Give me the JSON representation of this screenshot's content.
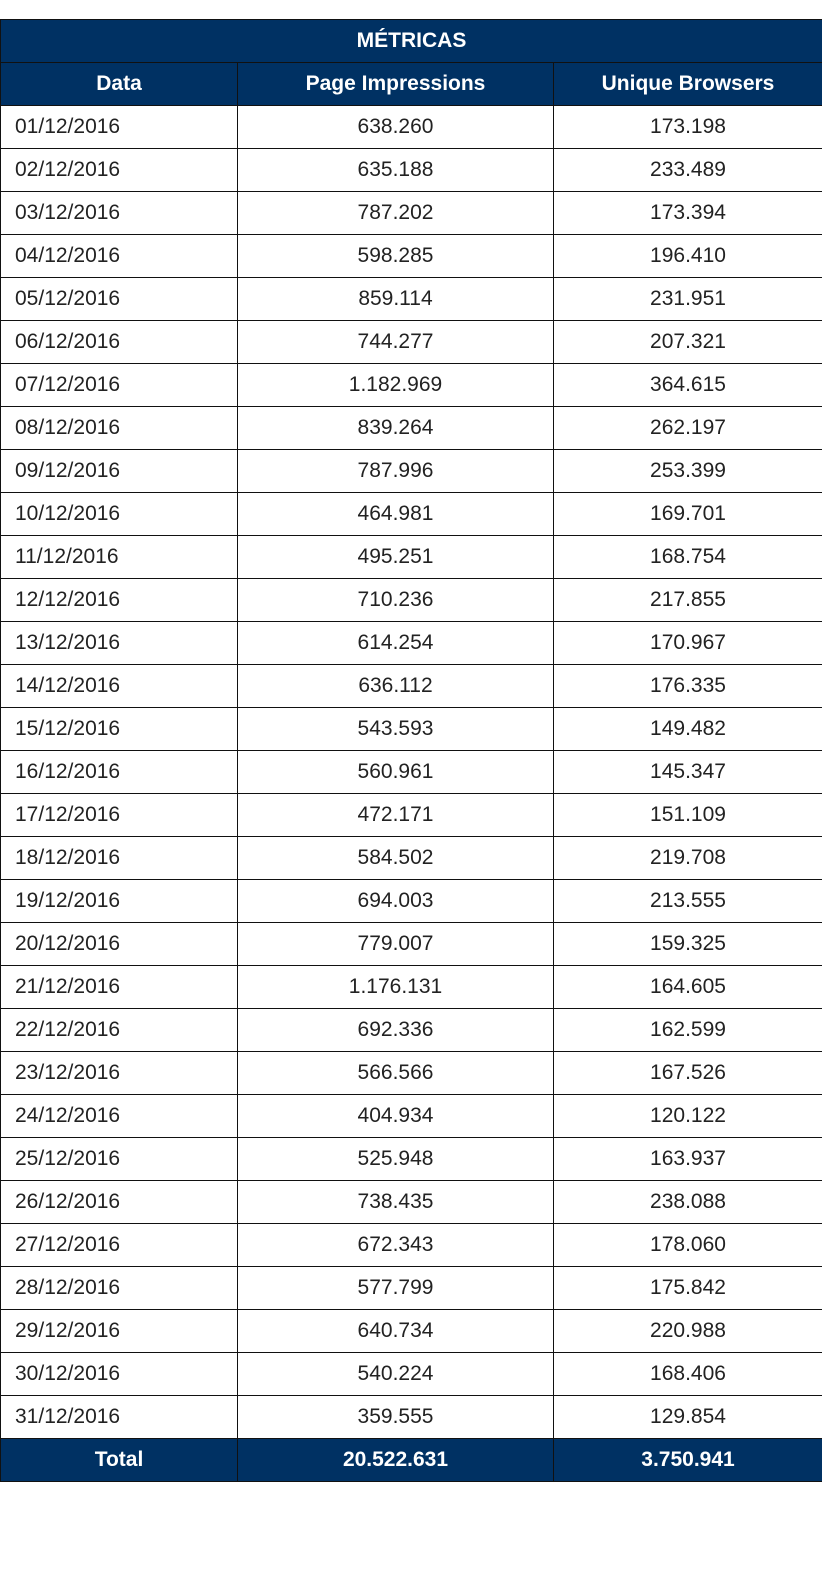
{
  "table": {
    "group_header": "MÉTRICAS",
    "columns": [
      "Data",
      "Page Impressions",
      "Unique Browsers"
    ],
    "rows": [
      [
        "01/12/2016",
        "638.260",
        "173.198"
      ],
      [
        "02/12/2016",
        "635.188",
        "233.489"
      ],
      [
        "03/12/2016",
        "787.202",
        "173.394"
      ],
      [
        "04/12/2016",
        "598.285",
        "196.410"
      ],
      [
        "05/12/2016",
        "859.114",
        "231.951"
      ],
      [
        "06/12/2016",
        "744.277",
        "207.321"
      ],
      [
        "07/12/2016",
        "1.182.969",
        "364.615"
      ],
      [
        "08/12/2016",
        "839.264",
        "262.197"
      ],
      [
        "09/12/2016",
        "787.996",
        "253.399"
      ],
      [
        "10/12/2016",
        "464.981",
        "169.701"
      ],
      [
        "11/12/2016",
        "495.251",
        "168.754"
      ],
      [
        "12/12/2016",
        "710.236",
        "217.855"
      ],
      [
        "13/12/2016",
        "614.254",
        "170.967"
      ],
      [
        "14/12/2016",
        "636.112",
        "176.335"
      ],
      [
        "15/12/2016",
        "543.593",
        "149.482"
      ],
      [
        "16/12/2016",
        "560.961",
        "145.347"
      ],
      [
        "17/12/2016",
        "472.171",
        "151.109"
      ],
      [
        "18/12/2016",
        "584.502",
        "219.708"
      ],
      [
        "19/12/2016",
        "694.003",
        "213.555"
      ],
      [
        "20/12/2016",
        "779.007",
        "159.325"
      ],
      [
        "21/12/2016",
        "1.176.131",
        "164.605"
      ],
      [
        "22/12/2016",
        "692.336",
        "162.599"
      ],
      [
        "23/12/2016",
        "566.566",
        "167.526"
      ],
      [
        "24/12/2016",
        "404.934",
        "120.122"
      ],
      [
        "25/12/2016",
        "525.948",
        "163.937"
      ],
      [
        "26/12/2016",
        "738.435",
        "238.088"
      ],
      [
        "27/12/2016",
        "672.343",
        "178.060"
      ],
      [
        "28/12/2016",
        "577.799",
        "175.842"
      ],
      [
        "29/12/2016",
        "640.734",
        "220.988"
      ],
      [
        "30/12/2016",
        "540.224",
        "168.406"
      ],
      [
        "31/12/2016",
        "359.555",
        "129.854"
      ]
    ],
    "total": [
      "Total",
      "20.522.631",
      "3.750.941"
    ]
  },
  "colors": {
    "header_bg": "#003163",
    "header_text": "#ffffff"
  }
}
